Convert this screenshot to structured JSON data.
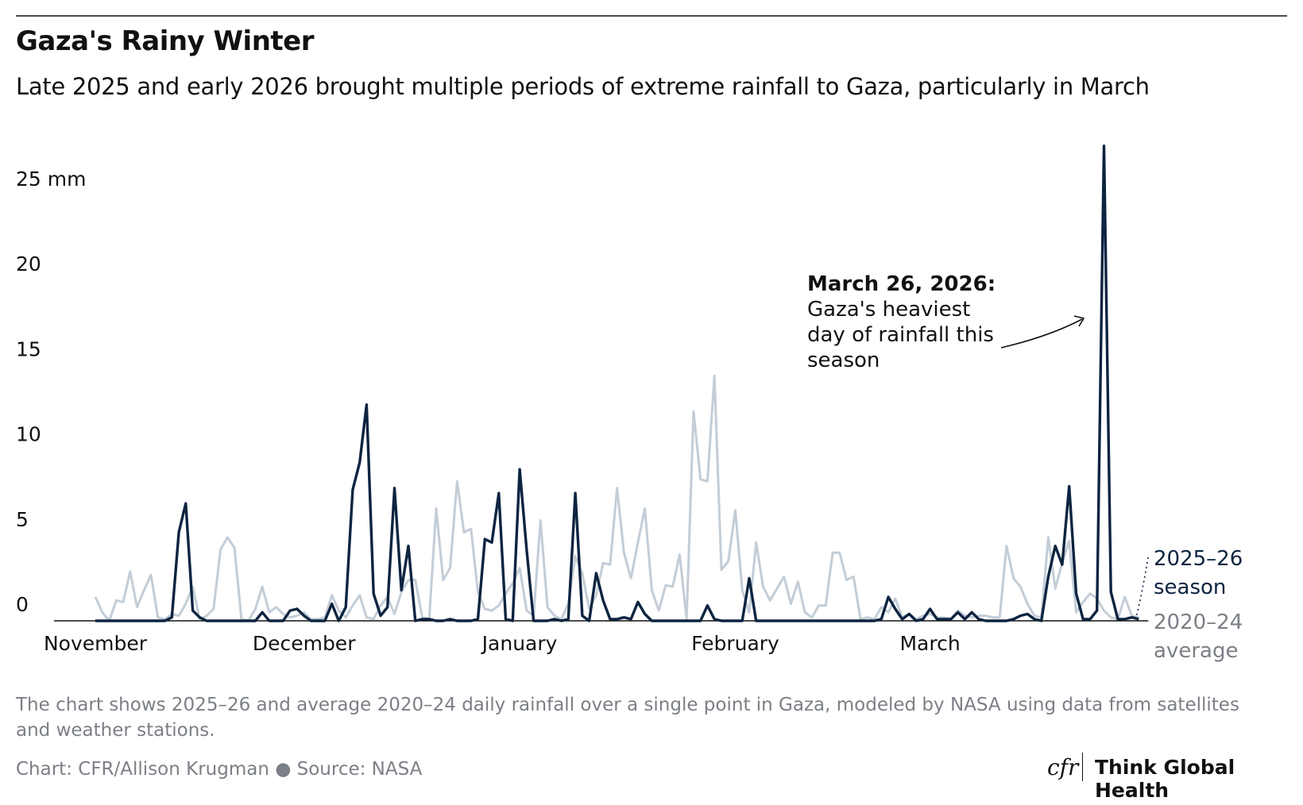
{
  "chart_data": {
    "type": "line",
    "title": "Gaza's Rainy Winter",
    "subtitle": "Late 2025 and early 2026 brought multiple periods of extreme rainfall to Gaza, particularly in March",
    "annotation": {
      "title": "March 26, 2026:",
      "text": "Gaza's heaviest day of rainfall this season"
    },
    "note": "The chart shows 2025–26 and average 2020–24 daily rainfall over a single point in Gaza, modeled by NASA using data from satellites and weather stations.",
    "source": "Chart: CFR/Allison Krugman ● Source: NASA",
    "logo": {
      "mark": "cfr",
      "text": "Think Global Health"
    },
    "categories": [
      "November",
      null,
      null,
      null,
      null,
      null,
      null,
      null,
      null,
      null,
      null,
      null,
      null,
      null,
      null,
      null,
      null,
      null,
      null,
      null,
      null,
      null,
      null,
      null,
      null,
      null,
      null,
      null,
      null,
      null,
      "December",
      null,
      null,
      null,
      null,
      null,
      null,
      null,
      null,
      null,
      null,
      null,
      null,
      null,
      null,
      null,
      null,
      null,
      null,
      null,
      null,
      null,
      null,
      null,
      null,
      null,
      null,
      null,
      null,
      null,
      null,
      "January",
      null,
      null,
      null,
      null,
      null,
      null,
      null,
      null,
      null,
      null,
      null,
      null,
      null,
      null,
      null,
      null,
      null,
      null,
      null,
      null,
      null,
      null,
      null,
      null,
      null,
      null,
      null,
      null,
      null,
      null,
      "February",
      null,
      null,
      null,
      null,
      null,
      null,
      null,
      null,
      null,
      null,
      null,
      null,
      null,
      null,
      null,
      null,
      null,
      null,
      null,
      null,
      null,
      null,
      null,
      null,
      null,
      null,
      null,
      "March",
      null,
      null,
      null,
      null,
      null,
      null,
      null,
      null,
      null,
      null,
      null,
      null,
      null,
      null,
      null,
      null,
      null,
      null,
      null,
      null,
      null,
      null,
      null,
      null,
      null,
      null,
      null,
      null,
      null,
      null
    ],
    "series": [
      {
        "name": "2025–26 season",
        "color": "#0d2440",
        "values": [
          0,
          0,
          0,
          0,
          0,
          0,
          0,
          0,
          0,
          0,
          0,
          0.2,
          5.2,
          6.9,
          0.6,
          0.2,
          0,
          0,
          0,
          0,
          0,
          0,
          0,
          0,
          0.5,
          0,
          0,
          0,
          0.6,
          0.7,
          0.3,
          0,
          0,
          0,
          1.0,
          0,
          0.8,
          7.7,
          9.3,
          12.7,
          1.6,
          0.3,
          0.8,
          7.8,
          1.8,
          4.4,
          0,
          0.1,
          0.1,
          0,
          0,
          0.1,
          0,
          0,
          0,
          0.1,
          4.8,
          4.6,
          7.5,
          0.1,
          0,
          8.9,
          4.2,
          0,
          0,
          0,
          0.1,
          0,
          0.1,
          7.5,
          0.3,
          0,
          2.8,
          1.2,
          0.1,
          0.1,
          0.2,
          0.1,
          1.1,
          0.4,
          0,
          0,
          0,
          0,
          0,
          0,
          0,
          0,
          0.9,
          0.1,
          0,
          0,
          0,
          0,
          2.5,
          0,
          0,
          0,
          0,
          0,
          0,
          0,
          0,
          0,
          0,
          0,
          0,
          0,
          0,
          0,
          0,
          0,
          0,
          0.1,
          1.4,
          0.7,
          0.1,
          0.4,
          0,
          0.1,
          0.7,
          0.1,
          0.1,
          0.1,
          0.5,
          0.1,
          0.5,
          0.1,
          0,
          0,
          0,
          0,
          0.1,
          0.3,
          0.4,
          0.1,
          0,
          2.6,
          4.4,
          3.3,
          7.9,
          1.6,
          0.1,
          0.1,
          0.6,
          27.9,
          1.7,
          0.1,
          0.1,
          0.2,
          0.1
        ]
      },
      {
        "name": "2020–24 average",
        "color": "#c3cdd7",
        "values": [
          1.4,
          0.5,
          0,
          1.2,
          1.1,
          2.9,
          0.8,
          1.8,
          2.7,
          0.2,
          0.1,
          0.4,
          0.3,
          1.0,
          2.0,
          0.1,
          0.3,
          0.7,
          4.2,
          4.9,
          4.3,
          0.1,
          0,
          0.7,
          2.0,
          0.5,
          0.8,
          0.4,
          0.2,
          0.3,
          0.5,
          0.1,
          0.1,
          0.2,
          1.5,
          0.6,
          0.2,
          0.9,
          1.5,
          0.2,
          0.1,
          0.9,
          1.4,
          0.4,
          1.7,
          2.4,
          2.4,
          0.2,
          0.1,
          6.6,
          2.4,
          3.1,
          8.2,
          5.2,
          5.4,
          1.7,
          0.7,
          0.6,
          0.9,
          1.6,
          2.2,
          3.1,
          0.6,
          0.3,
          5.9,
          0.8,
          0.3,
          0.1,
          1.0,
          3.8,
          2.8,
          0.7,
          1.5,
          3.4,
          3.3,
          7.8,
          4.0,
          2.5,
          4.6,
          6.6,
          1.8,
          0.6,
          2.1,
          2.0,
          3.9,
          0.1,
          12.3,
          8.3,
          8.2,
          14.4,
          3.0,
          3.5,
          6.5,
          1.8,
          0.5,
          4.6,
          2.0,
          1.2,
          1.9,
          2.6,
          1.0,
          2.3,
          0.5,
          0.2,
          0.9,
          0.9,
          4.0,
          4.0,
          2.4,
          2.6,
          0.1,
          0.2,
          0.1,
          0.8,
          0.5,
          1.3,
          0.2,
          0.4,
          0.1,
          0.3,
          0.4,
          0.2,
          0.2,
          0.1,
          0.6,
          0.3,
          0.2,
          0.3,
          0.3,
          0.2,
          0.2,
          4.4,
          2.5,
          2.0,
          1.0,
          0.3,
          0.2,
          4.9,
          1.9,
          3.4,
          4.7,
          0.5,
          1.1,
          1.6,
          1.3,
          0.6,
          0.2,
          0.1,
          1.4,
          0.3,
          0.2
        ]
      }
    ],
    "ylim": [
      0,
      28
    ],
    "yticks": [
      0,
      5,
      10,
      15,
      20,
      {
        "value": 25,
        "label": "25 mm"
      }
    ],
    "grid": false
  }
}
